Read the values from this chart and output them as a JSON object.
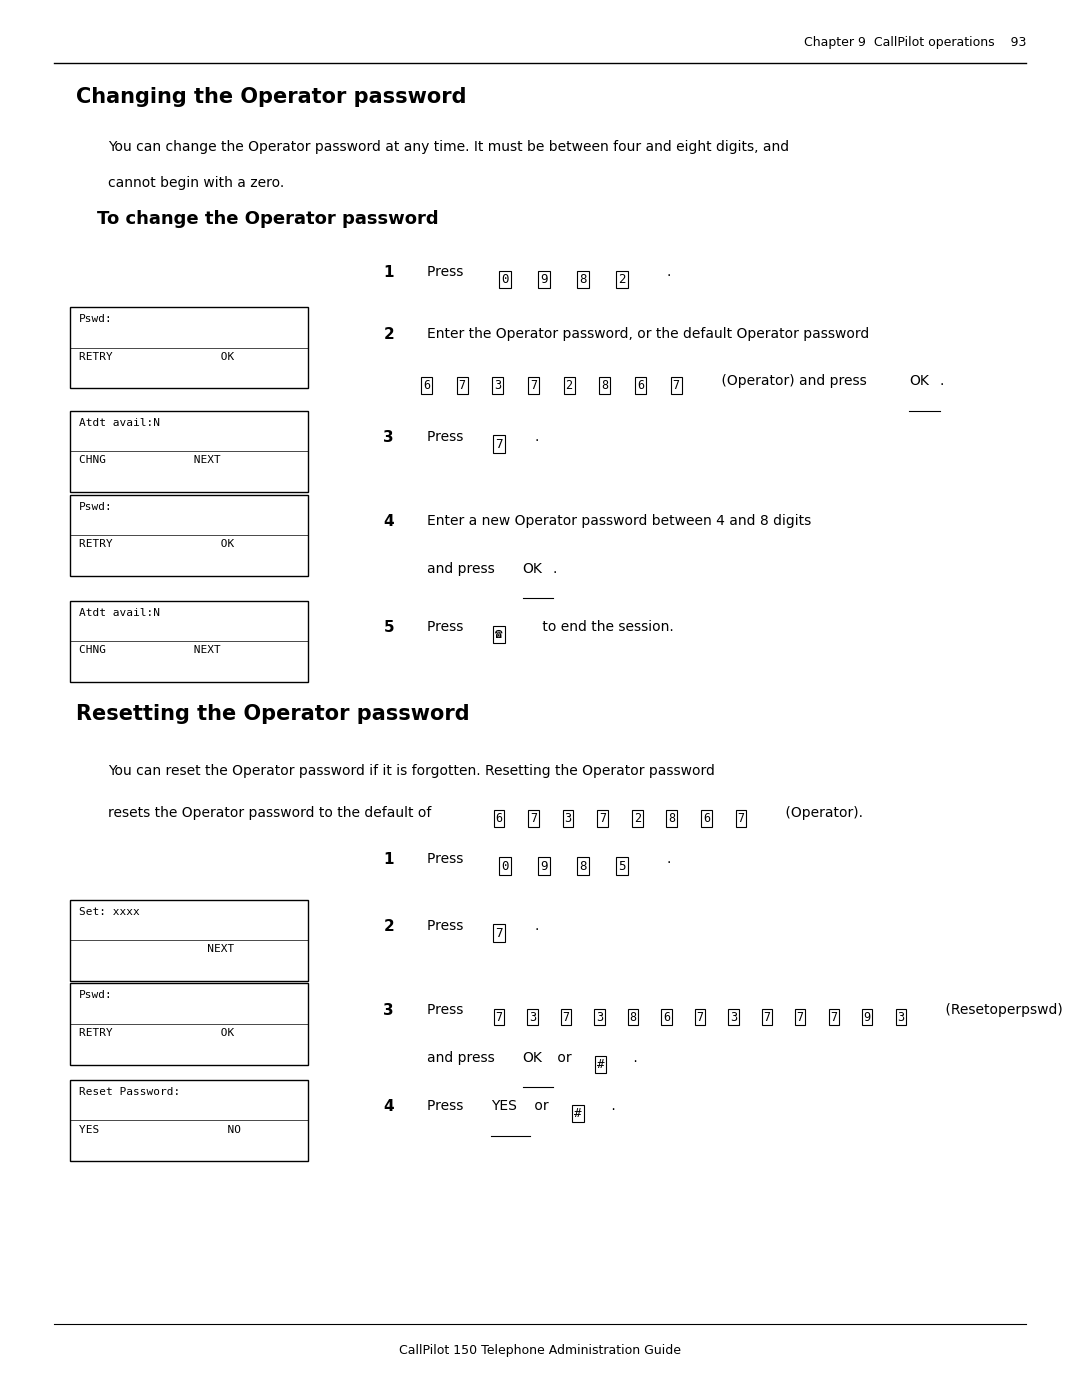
{
  "page_width": 10.8,
  "page_height": 13.97,
  "bg_color": "#ffffff",
  "header_text": "Chapter 9  CallPilot operations    93",
  "footer_text": "CallPilot 150 Telephone Administration Guide",
  "section1_title": "Changing the Operator password",
  "section1_body1": "You can change the Operator password at any time. It must be between four and eight digits, and",
  "section1_body2": "cannot begin with a zero.",
  "subsection1_title": "To change the Operator password",
  "section2_title": "Resetting the Operator password",
  "section2_body1": "You can reset the Operator password if it is forgotten. Resetting the Operator password",
  "section2_body2": "resets the Operator password to the default of",
  "section2_body3": " (Operator).",
  "keys_operator": [
    "6",
    "7",
    "3",
    "7",
    "2",
    "8",
    "6",
    "7"
  ],
  "keys_reset_code": [
    "7",
    "3",
    "7",
    "3",
    "8",
    "6",
    "7",
    "3",
    "7",
    "7",
    "7",
    "9",
    "3"
  ],
  "keys_0982": [
    "0",
    "9",
    "8",
    "2"
  ],
  "keys_0985": [
    "0",
    "9",
    "8",
    "5"
  ]
}
